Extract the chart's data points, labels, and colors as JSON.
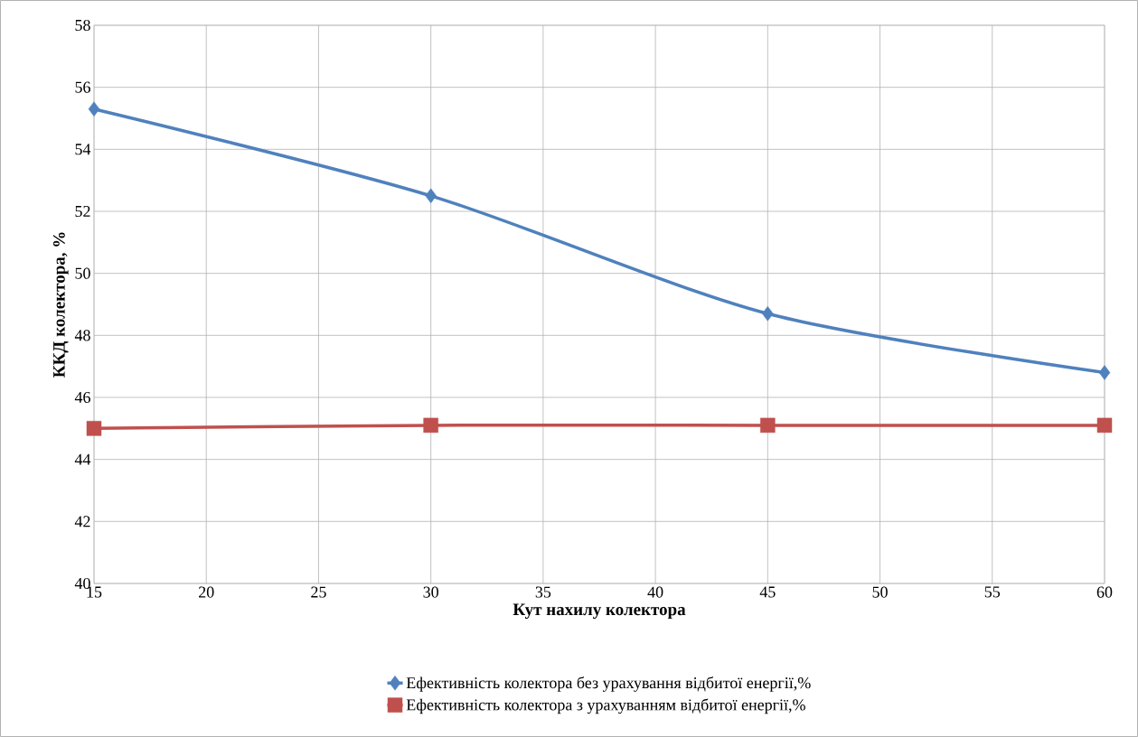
{
  "chart_data": {
    "type": "line",
    "xlabel": "Кут нахилу колектора",
    "ylabel": "ККД колектора, %",
    "x": [
      15,
      30,
      45,
      60
    ],
    "series": [
      {
        "name": "Ефективність колектора без урахування відбитої енергії,%",
        "color": "#4f81bd",
        "marker": "diamond",
        "values": [
          55.3,
          52.5,
          48.7,
          46.8
        ]
      },
      {
        "name": "Ефективність колектора з урахуванням відбитої енергії,%",
        "color": "#c0504d",
        "marker": "square",
        "values": [
          45.0,
          45.1,
          45.1,
          45.1
        ]
      }
    ],
    "xlim": [
      15,
      60
    ],
    "ylim": [
      40,
      58
    ],
    "xticks": [
      15,
      20,
      25,
      30,
      35,
      40,
      45,
      50,
      55,
      60
    ],
    "yticks": [
      40,
      42,
      44,
      46,
      48,
      50,
      52,
      54,
      56,
      58
    ],
    "grid": true,
    "legend": "bottom",
    "line_style": "solid"
  }
}
